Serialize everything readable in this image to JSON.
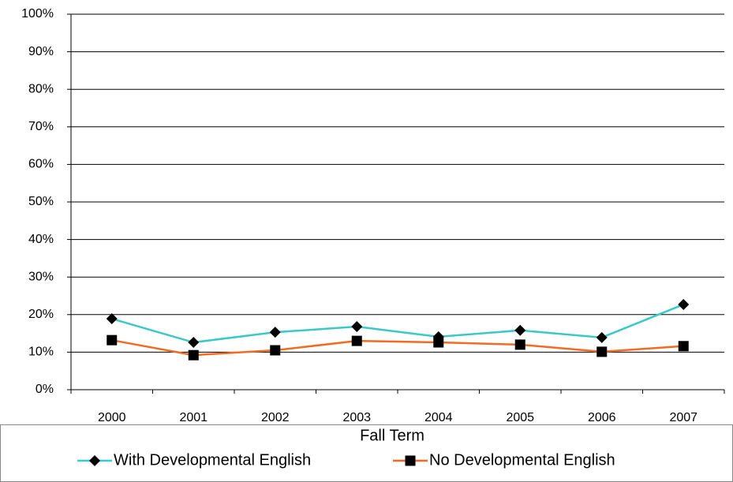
{
  "chart_data": {
    "type": "line",
    "xlabel": "Fall Term",
    "categories": [
      "2000",
      "2001",
      "2002",
      "2003",
      "2004",
      "2005",
      "2006",
      "2007"
    ],
    "series": [
      {
        "name": "With Developmental English",
        "color": "#3cc8c8",
        "marker": "diamond",
        "values": [
          18.9,
          12.6,
          15.3,
          16.8,
          14.1,
          15.8,
          13.9,
          22.7
        ]
      },
      {
        "name": "No Developmental English",
        "color": "#f26b22",
        "marker": "square",
        "values": [
          13.2,
          9.2,
          10.5,
          13.0,
          12.6,
          12.0,
          10.1,
          11.6
        ]
      }
    ],
    "ylim": [
      0,
      100
    ],
    "yticks": [
      {
        "value": 0,
        "label": "0%"
      },
      {
        "value": 10,
        "label": "10%"
      },
      {
        "value": 20,
        "label": "20%"
      },
      {
        "value": 30,
        "label": "30%"
      },
      {
        "value": 40,
        "label": "40%"
      },
      {
        "value": 50,
        "label": "50%"
      },
      {
        "value": 60,
        "label": "60%"
      },
      {
        "value": 70,
        "label": "70%"
      },
      {
        "value": 80,
        "label": "80%"
      },
      {
        "value": 90,
        "label": "90%"
      },
      {
        "value": 100,
        "label": "100%"
      }
    ],
    "grid": true,
    "legend": "bottom"
  }
}
